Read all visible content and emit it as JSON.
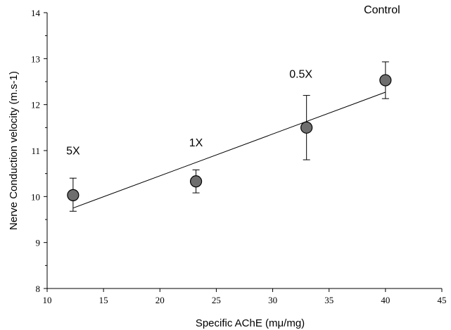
{
  "chart_data": {
    "type": "scatter",
    "xlabel": "Specific AChE (mμ/mg)",
    "ylabel": "Nerve Conduction velocity (m.s-1)",
    "xlim": [
      10,
      45
    ],
    "ylim": [
      8,
      14
    ],
    "xticks": [
      10,
      15,
      20,
      25,
      30,
      35,
      40,
      45
    ],
    "yticks": [
      8,
      9,
      10,
      11,
      12,
      13,
      14
    ],
    "grid": false,
    "points": [
      {
        "label": "5X",
        "x": 12.3,
        "y": 10.03,
        "err_low": 0.35,
        "err_high": 0.37
      },
      {
        "label": "1X",
        "x": 23.2,
        "y": 10.33,
        "err_low": 0.25,
        "err_high": 0.25
      },
      {
        "label": "0.5X",
        "x": 33.0,
        "y": 11.5,
        "err_low": 0.7,
        "err_high": 0.7
      },
      {
        "label": "Control",
        "x": 40.0,
        "y": 12.53,
        "err_low": 0.4,
        "err_high": 0.4
      }
    ],
    "trendline": {
      "x_start": 12.3,
      "y_start": 9.75,
      "x_end": 40.0,
      "y_end": 12.27
    },
    "marker_color": "#6e6e6e"
  }
}
